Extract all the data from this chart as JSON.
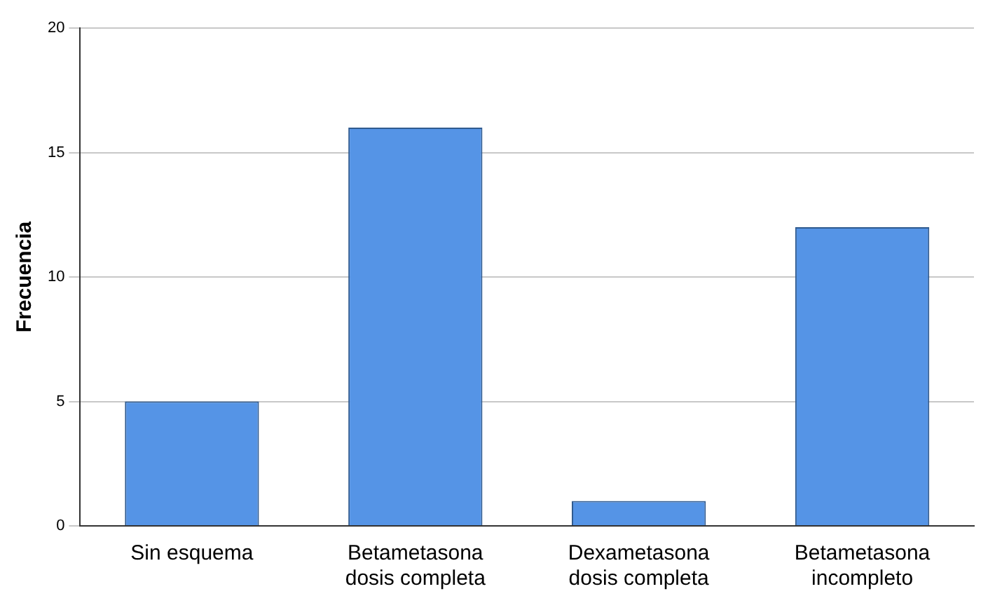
{
  "chart_data": {
    "type": "bar",
    "ylabel": "Frecuencia",
    "categories": [
      "Sin esquema",
      "Betametasona\ndosis completa",
      "Dexametasona\ndosis completa",
      "Betametasona\nincompleto"
    ],
    "values": [
      5,
      16,
      1,
      12
    ],
    "color": "#5594e6",
    "ylim": [
      0,
      20
    ],
    "yticks": [
      0,
      5,
      10,
      15,
      20
    ],
    "grid": "y",
    "legend": false
  }
}
